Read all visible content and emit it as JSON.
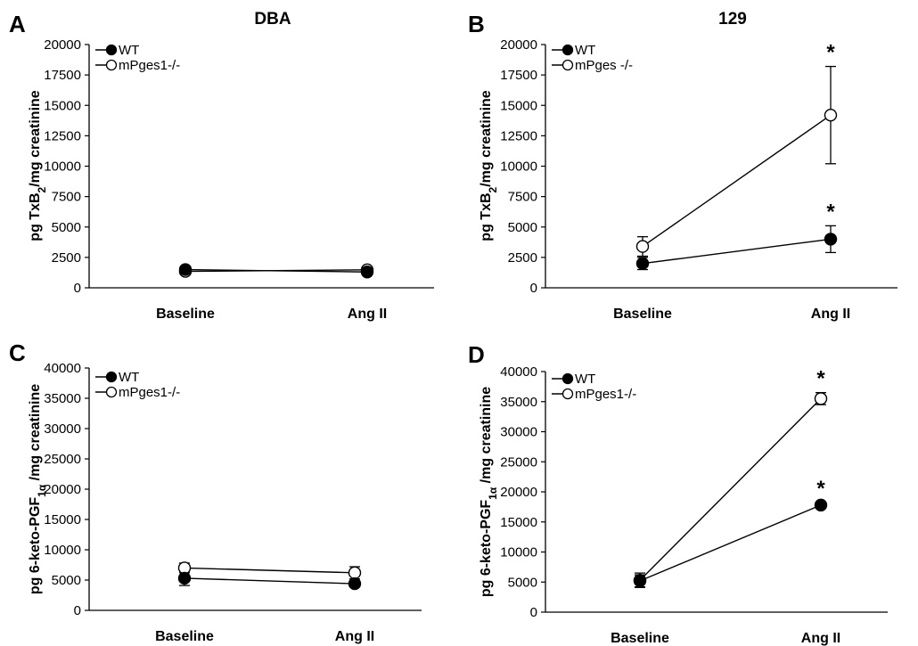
{
  "chart_data": [
    {
      "panel": "A",
      "type": "line",
      "title": "DBA",
      "ylabel": "pg TxB2/mg creatinine",
      "ylabel_parts": [
        "pg TxB",
        "2",
        "/mg creatinine"
      ],
      "categories": [
        "Baseline",
        "Ang II"
      ],
      "ylim": [
        0,
        20000
      ],
      "yticks": [
        0,
        2500,
        5000,
        7500,
        10000,
        12500,
        15000,
        17500,
        20000
      ],
      "legend": "top-left",
      "series": [
        {
          "name": "WT",
          "marker": "filled",
          "values": [
            1500,
            1300
          ],
          "errors": [
            150,
            120
          ],
          "significant": [
            false,
            false
          ]
        },
        {
          "name": "mPges1-/-",
          "marker": "open",
          "values": [
            1350,
            1480
          ],
          "errors": [
            100,
            120
          ],
          "significant": [
            false,
            false
          ]
        }
      ]
    },
    {
      "panel": "B",
      "type": "line",
      "title": "129",
      "ylabel": "pg TxB2/mg creatinine",
      "ylabel_parts": [
        "pg TxB",
        "2",
        "/mg creatinine"
      ],
      "categories": [
        "Baseline",
        "Ang II"
      ],
      "ylim": [
        0,
        20000
      ],
      "yticks": [
        0,
        2500,
        5000,
        7500,
        10000,
        12500,
        15000,
        17500,
        20000
      ],
      "legend": "top-left",
      "series": [
        {
          "name": "WT",
          "marker": "filled",
          "values": [
            2000,
            4000
          ],
          "errors": [
            500,
            1100
          ],
          "significant": [
            false,
            true
          ]
        },
        {
          "name": "mPges -/-",
          "marker": "open",
          "values": [
            3400,
            14200
          ],
          "errors": [
            800,
            4000
          ],
          "significant": [
            false,
            true
          ]
        }
      ]
    },
    {
      "panel": "C",
      "type": "line",
      "title": "",
      "ylabel": "pg 6-keto-PGF1α /mg creatinine",
      "ylabel_parts": [
        "pg 6-keto-PGF",
        "1α",
        " /mg creatinine"
      ],
      "categories": [
        "Baseline",
        "Ang II"
      ],
      "ylim": [
        0,
        40000
      ],
      "yticks": [
        0,
        5000,
        10000,
        15000,
        20000,
        25000,
        30000,
        35000,
        40000
      ],
      "legend": "top-left",
      "series": [
        {
          "name": "WT",
          "marker": "filled",
          "values": [
            5300,
            4400
          ],
          "errors": [
            1200,
            500
          ],
          "significant": [
            false,
            false
          ]
        },
        {
          "name": "mPges1-/-",
          "marker": "open",
          "values": [
            7000,
            6200
          ],
          "errors": [
            800,
            1000
          ],
          "significant": [
            false,
            false
          ]
        }
      ]
    },
    {
      "panel": "D",
      "type": "line",
      "title": "",
      "ylabel": "pg 6-keto-PGF1α /mg creatinine",
      "ylabel_parts": [
        "pg 6-keto-PGF",
        "1α",
        " /mg creatinine"
      ],
      "categories": [
        "Baseline",
        "Ang II"
      ],
      "ylim": [
        0,
        40000
      ],
      "yticks": [
        0,
        5000,
        10000,
        15000,
        20000,
        25000,
        30000,
        35000,
        40000
      ],
      "legend": "top-left",
      "series": [
        {
          "name": "WT",
          "marker": "filled",
          "values": [
            5200,
            17800
          ],
          "errors": [
            1000,
            400
          ],
          "significant": [
            false,
            true
          ]
        },
        {
          "name": "mPges1-/-",
          "marker": "open",
          "values": [
            5300,
            35500
          ],
          "errors": [
            1200,
            1000
          ],
          "significant": [
            false,
            true
          ]
        }
      ]
    }
  ],
  "significance_symbol": "*"
}
